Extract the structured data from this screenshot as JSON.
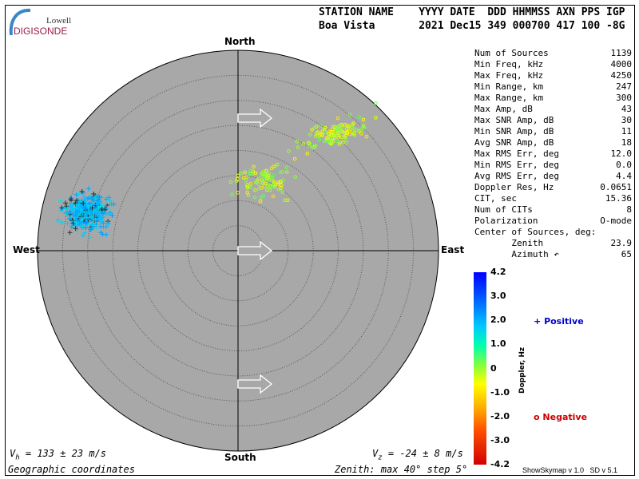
{
  "logo": {
    "line1": "Lowell",
    "line2": "DIGISONDE"
  },
  "header": {
    "row1": "STATION NAME    YYYY DATE  DDD HHMMSS AXN PPS IGP",
    "row2": "Boa Vista       2021 Dec15 349 000700 417 100 -8G"
  },
  "stats": [
    {
      "label": "Num of Sources",
      "value": "1139"
    },
    {
      "label": "Min Freq, kHz",
      "value": "4000"
    },
    {
      "label": "Max Freq, kHz",
      "value": "4250"
    },
    {
      "label": "Min Range, km",
      "value": "247"
    },
    {
      "label": "Max Range, km",
      "value": "300"
    },
    {
      "label": "Max Amp, dB",
      "value": "43"
    },
    {
      "label": "Max SNR Amp, dB",
      "value": "30"
    },
    {
      "label": "Min SNR Amp, dB",
      "value": "11"
    },
    {
      "label": "Avg SNR Amp, dB",
      "value": "18"
    },
    {
      "label": "Max RMS Err, deg",
      "value": "12.0"
    },
    {
      "label": "Min RMS Err, deg",
      "value": "0.0"
    },
    {
      "label": "Avg RMS Err, deg",
      "value": "4.4"
    },
    {
      "label": "Doppler Res, Hz",
      "value": "0.0651"
    },
    {
      "label": "CIT, sec",
      "value": "15.36"
    },
    {
      "label": "Num of CITs",
      "value": "8"
    },
    {
      "label": "Polarization",
      "value": "O-mode"
    },
    {
      "label": "Center of Sources, deg:",
      "value": ""
    },
    {
      "label": "       Zenith",
      "value": "23.9"
    },
    {
      "label": "       Azimuth ↶",
      "value": "65"
    }
  ],
  "chart_data": {
    "type": "scatter",
    "projection": "polar skymap",
    "directions": {
      "north": "North",
      "south": "South",
      "east": "East",
      "west": "West"
    },
    "zenith_max_deg": 40,
    "zenith_step_deg": 5,
    "grid": true,
    "background_color": "#a8a8a8",
    "series": [
      {
        "name": "Positive",
        "marker": "+",
        "color": "#0000cc",
        "doppler_range_hz": [
          1.5,
          2.5
        ],
        "approx_zenith_deg": [
          29,
          40
        ],
        "approx_azimuth_deg": [
          270,
          300
        ]
      },
      {
        "name": "Negative",
        "marker": "o",
        "color": "#cc0000",
        "doppler_range_hz": [
          -1.0,
          0.4
        ],
        "approx_zenith_deg": [
          8,
          38
        ],
        "approx_azimuth_deg": [
          15,
          80
        ]
      }
    ],
    "colorbar": {
      "label": "Doppler, Hz",
      "ticks": [
        "4.2",
        "3.0",
        "2.0",
        "1.0",
        "0",
        "-1.0",
        "-2.0",
        "-3.0",
        "-4.2"
      ],
      "min": -4.2,
      "max": 4.2
    }
  },
  "footer": {
    "vh_sym": "V",
    "vh_sub": "h",
    "vh_text": " = 133 ± 23 m/s",
    "vz_sym": "V",
    "vz_sub": "z",
    "vz_text": " = -24 ± 8 m/s",
    "coords": "Geographic coordinates",
    "zenith": "Zenith: max 40°  step 5°",
    "version": "ShowSkymap v 1.0   SD v 5.1"
  }
}
